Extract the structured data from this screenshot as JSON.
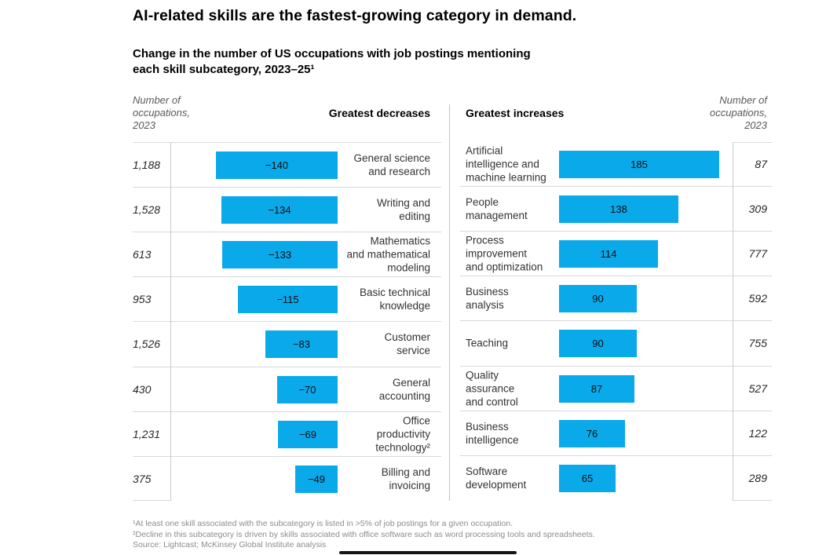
{
  "chart_data": {
    "type": "bar",
    "orientation": "horizontal",
    "title": "AI-related skills are the fastest-growing category in demand.",
    "subtitle": "Change in the number of US occupations with job postings mentioning\neach skill subcategory, 2023–25¹",
    "bar_color": "#0aa9ea",
    "grid_color": "#d9d9d9",
    "xlim_abs": [
      0,
      200
    ],
    "panels": [
      {
        "heading": "Greatest decreases",
        "occupations_note": "Number of\noccupations,\n2023",
        "rows": [
          {
            "label": "General science\nand research",
            "change": -140,
            "change_display": "−140",
            "occupations_2023": "1,188"
          },
          {
            "label": "Writing and\nediting",
            "change": -134,
            "change_display": "−134",
            "occupations_2023": "1,528"
          },
          {
            "label": "Mathematics\nand mathematical\nmodeling",
            "change": -133,
            "change_display": "−133",
            "occupations_2023": "613"
          },
          {
            "label": "Basic technical\nknowledge",
            "change": -115,
            "change_display": "−115",
            "occupations_2023": "953"
          },
          {
            "label": "Customer\nservice",
            "change": -83,
            "change_display": "−83",
            "occupations_2023": "1,526"
          },
          {
            "label": "General\naccounting",
            "change": -70,
            "change_display": "−70",
            "occupations_2023": "430"
          },
          {
            "label": "Office\nproductivity\ntechnology²",
            "change": -69,
            "change_display": "−69",
            "occupations_2023": "1,231"
          },
          {
            "label": "Billing and\ninvoicing",
            "change": -49,
            "change_display": "−49",
            "occupations_2023": "375"
          }
        ]
      },
      {
        "heading": "Greatest increases",
        "occupations_note": "Number of\noccupations,\n2023",
        "rows": [
          {
            "label": "Artificial\nintelligence and\nmachine learning",
            "change": 185,
            "change_display": "185",
            "occupations_2023": "87"
          },
          {
            "label": "People\nmanagement",
            "change": 138,
            "change_display": "138",
            "occupations_2023": "309"
          },
          {
            "label": "Process\nimprovement\nand optimization",
            "change": 114,
            "change_display": "114",
            "occupations_2023": "777"
          },
          {
            "label": "Business\nanalysis",
            "change": 90,
            "change_display": "90",
            "occupations_2023": "592"
          },
          {
            "label": "Teaching",
            "change": 90,
            "change_display": "90",
            "occupations_2023": "755"
          },
          {
            "label": "Quality\nassurance\nand control",
            "change": 87,
            "change_display": "87",
            "occupations_2023": "527"
          },
          {
            "label": "Business\nintelligence",
            "change": 76,
            "change_display": "76",
            "occupations_2023": "122"
          },
          {
            "label": "Software\ndevelopment",
            "change": 65,
            "change_display": "65",
            "occupations_2023": "289"
          }
        ]
      }
    ]
  },
  "footnotes": [
    "¹At least one skill associated with the subcategory is listed in >5% of job postings for a given occupation.",
    "²Decline in this subcategory is driven by skills associated with office software such as word processing tools and spreadsheets.",
    "Source: Lightcast; McKinsey Global Institute analysis"
  ]
}
